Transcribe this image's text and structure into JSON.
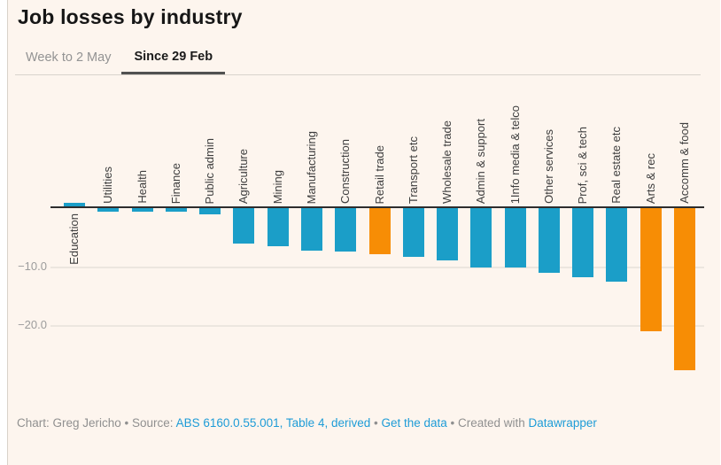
{
  "header": {
    "title": "Job losses by industry"
  },
  "tabs": [
    {
      "label": "Week to 2 May",
      "active": false
    },
    {
      "label": "Since 29 Feb",
      "active": true
    }
  ],
  "chart_data": {
    "type": "bar",
    "title": "Job losses by industry",
    "categories": [
      "Education",
      "Utilities",
      "Health",
      "Finance",
      "Public admin",
      "Agriculture",
      "Mining",
      "Manufacturing",
      "Construction",
      "Retail trade",
      "Transport etc",
      "Wholesale trade",
      "Admin & support",
      "1Info media & telco",
      "Other services",
      "Prof, sci & tech",
      "Real estate etc",
      "Arts & rec",
      "Accomm & food"
    ],
    "values": [
      0.9,
      -0.6,
      -0.6,
      -0.6,
      -1.0,
      -6.0,
      -6.4,
      -7.2,
      -7.3,
      -7.8,
      -8.2,
      -8.8,
      -10.0,
      -10.1,
      -10.9,
      -11.7,
      -12.5,
      -20.9,
      -27.5
    ],
    "highlighted": [
      "Retail trade",
      "Arts & rec",
      "Accomm & food"
    ],
    "default_color": "#1b9ec8",
    "highlight_color": "#f78d05",
    "xlabel": "",
    "ylabel": "",
    "ylim": [
      -28.5,
      2
    ],
    "yticks": [
      -10,
      -20
    ],
    "ytick_labels": [
      "−10.0",
      "−20.0"
    ],
    "grid": true,
    "legend": "none",
    "orientation": "vertical",
    "category_label_rotation": 90
  },
  "footer": {
    "credit": "Chart: Greg Jericho • Source: ",
    "source_link": "ABS 6160.0.55.001, Table 4, derived",
    "sep": " • ",
    "data_link": "Get the data",
    "created": " • Created with ",
    "tool_link": "Datawrapper"
  },
  "colors": {
    "background": "#fdf5ee",
    "bar_blue": "#1b9ec8",
    "bar_orange": "#f78d05",
    "link_blue": "#1e9cd7"
  }
}
